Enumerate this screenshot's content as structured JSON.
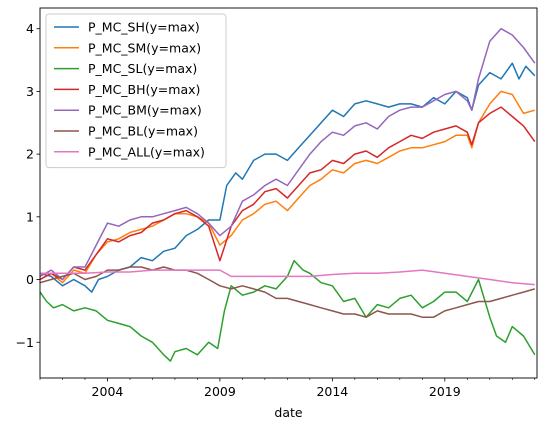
{
  "chart_data": {
    "type": "line",
    "title": "",
    "xlabel": "date",
    "ylabel": "",
    "xlim": [
      2001.0,
      2023.1
    ],
    "ylim": [
      -1.57,
      4.33
    ],
    "grid": false,
    "legend_position": "top-left",
    "x_major_ticks": [
      2004,
      2009,
      2014,
      2019
    ],
    "y_ticks": [
      -1,
      0,
      1,
      2,
      3,
      4
    ],
    "series": [
      {
        "name": "P_MC_SH(y=max)",
        "color": "#1f77b4",
        "x": [
          2001.0,
          2001.5,
          2002.0,
          2002.5,
          2003.0,
          2003.3,
          2003.6,
          2004.0,
          2004.5,
          2005.0,
          2005.5,
          2006.0,
          2006.5,
          2007.0,
          2007.5,
          2008.0,
          2008.5,
          2009.0,
          2009.3,
          2009.7,
          2010.0,
          2010.5,
          2011.0,
          2011.5,
          2012.0,
          2012.5,
          2013.0,
          2013.5,
          2014.0,
          2014.5,
          2015.0,
          2015.5,
          2016.0,
          2016.5,
          2017.0,
          2017.5,
          2018.0,
          2018.5,
          2019.0,
          2019.5,
          2020.0,
          2020.2,
          2020.5,
          2021.0,
          2021.5,
          2022.0,
          2022.3,
          2022.6,
          2023.0
        ],
        "values": [
          0.1,
          0.05,
          -0.1,
          0.0,
          -0.1,
          -0.2,
          0.0,
          0.05,
          0.15,
          0.2,
          0.35,
          0.3,
          0.45,
          0.5,
          0.7,
          0.8,
          0.95,
          0.95,
          1.5,
          1.7,
          1.6,
          1.9,
          2.0,
          2.0,
          1.9,
          2.1,
          2.3,
          2.5,
          2.7,
          2.6,
          2.8,
          2.85,
          2.8,
          2.75,
          2.8,
          2.8,
          2.75,
          2.9,
          2.8,
          3.0,
          2.9,
          2.7,
          3.1,
          3.3,
          3.2,
          3.45,
          3.2,
          3.4,
          3.25
        ]
      },
      {
        "name": "P_MC_SM(y=max)",
        "color": "#ff7f0e",
        "x": [
          2001.0,
          2001.5,
          2002.0,
          2002.5,
          2003.0,
          2003.5,
          2004.0,
          2004.5,
          2005.0,
          2005.5,
          2006.0,
          2006.5,
          2007.0,
          2007.5,
          2008.0,
          2008.5,
          2009.0,
          2009.5,
          2010.0,
          2010.5,
          2011.0,
          2011.5,
          2012.0,
          2012.5,
          2013.0,
          2013.5,
          2014.0,
          2014.5,
          2015.0,
          2015.5,
          2016.0,
          2016.5,
          2017.0,
          2017.5,
          2018.0,
          2018.5,
          2019.0,
          2019.5,
          2020.0,
          2020.2,
          2020.5,
          2021.0,
          2021.5,
          2022.0,
          2022.5,
          2023.0
        ],
        "values": [
          0.0,
          0.1,
          -0.05,
          0.15,
          0.1,
          0.4,
          0.6,
          0.65,
          0.75,
          0.8,
          0.85,
          0.95,
          1.05,
          1.05,
          1.0,
          0.9,
          0.55,
          0.7,
          0.95,
          1.05,
          1.2,
          1.25,
          1.1,
          1.3,
          1.5,
          1.6,
          1.75,
          1.7,
          1.85,
          1.9,
          1.85,
          1.95,
          2.05,
          2.1,
          2.1,
          2.15,
          2.2,
          2.3,
          2.3,
          2.1,
          2.5,
          2.8,
          3.0,
          2.95,
          2.65,
          2.7
        ]
      },
      {
        "name": "P_MC_SL(y=max)",
        "color": "#2ca02c",
        "x": [
          2001.0,
          2001.3,
          2001.6,
          2002.0,
          2002.5,
          2003.0,
          2003.5,
          2004.0,
          2004.5,
          2005.0,
          2005.5,
          2006.0,
          2006.5,
          2006.8,
          2007.0,
          2007.5,
          2008.0,
          2008.5,
          2008.9,
          2009.2,
          2009.5,
          2010.0,
          2010.5,
          2011.0,
          2011.5,
          2012.0,
          2012.3,
          2012.7,
          2013.0,
          2013.5,
          2014.0,
          2014.5,
          2015.0,
          2015.5,
          2016.0,
          2016.5,
          2017.0,
          2017.5,
          2018.0,
          2018.5,
          2019.0,
          2019.5,
          2020.0,
          2020.5,
          2021.0,
          2021.3,
          2021.7,
          2022.0,
          2022.5,
          2023.0
        ],
        "values": [
          -0.2,
          -0.35,
          -0.45,
          -0.4,
          -0.5,
          -0.45,
          -0.5,
          -0.65,
          -0.7,
          -0.75,
          -0.9,
          -1.0,
          -1.2,
          -1.3,
          -1.15,
          -1.1,
          -1.2,
          -1.0,
          -1.1,
          -0.5,
          -0.1,
          -0.25,
          -0.2,
          -0.1,
          -0.15,
          0.05,
          0.3,
          0.15,
          0.1,
          -0.05,
          -0.1,
          -0.35,
          -0.3,
          -0.6,
          -0.4,
          -0.45,
          -0.3,
          -0.25,
          -0.45,
          -0.35,
          -0.2,
          -0.2,
          -0.35,
          0.0,
          -0.6,
          -0.9,
          -1.0,
          -0.75,
          -0.9,
          -1.2
        ]
      },
      {
        "name": "P_MC_BH(y=max)",
        "color": "#d62728",
        "x": [
          2001.0,
          2001.5,
          2002.0,
          2002.5,
          2003.0,
          2003.5,
          2004.0,
          2004.5,
          2005.0,
          2005.5,
          2006.0,
          2006.5,
          2007.0,
          2007.5,
          2008.0,
          2008.5,
          2009.0,
          2009.5,
          2010.0,
          2010.5,
          2011.0,
          2011.5,
          2012.0,
          2012.5,
          2013.0,
          2013.5,
          2014.0,
          2014.5,
          2015.0,
          2015.5,
          2016.0,
          2016.5,
          2017.0,
          2017.5,
          2018.0,
          2018.5,
          2019.0,
          2019.5,
          2020.0,
          2020.2,
          2020.5,
          2021.0,
          2021.5,
          2022.0,
          2022.5,
          2023.0
        ],
        "values": [
          0.0,
          0.1,
          0.0,
          0.2,
          0.15,
          0.4,
          0.65,
          0.6,
          0.7,
          0.75,
          0.9,
          0.95,
          1.05,
          1.1,
          1.0,
          0.85,
          0.3,
          0.85,
          1.1,
          1.2,
          1.4,
          1.45,
          1.3,
          1.5,
          1.7,
          1.75,
          1.9,
          1.85,
          2.0,
          2.05,
          1.95,
          2.1,
          2.2,
          2.3,
          2.25,
          2.35,
          2.4,
          2.45,
          2.35,
          2.15,
          2.5,
          2.65,
          2.75,
          2.6,
          2.45,
          2.2
        ]
      },
      {
        "name": "P_MC_BM(y=max)",
        "color": "#9467bd",
        "x": [
          2001.0,
          2001.5,
          2002.0,
          2002.5,
          2003.0,
          2003.5,
          2004.0,
          2004.5,
          2005.0,
          2005.5,
          2006.0,
          2006.5,
          2007.0,
          2007.5,
          2008.0,
          2008.5,
          2009.0,
          2009.5,
          2010.0,
          2010.5,
          2011.0,
          2011.5,
          2012.0,
          2012.5,
          2013.0,
          2013.5,
          2014.0,
          2014.5,
          2015.0,
          2015.5,
          2016.0,
          2016.5,
          2017.0,
          2017.5,
          2018.0,
          2018.5,
          2019.0,
          2019.5,
          2020.0,
          2020.2,
          2020.5,
          2021.0,
          2021.5,
          2022.0,
          2022.5,
          2023.0
        ],
        "values": [
          0.05,
          0.15,
          0.0,
          0.2,
          0.2,
          0.55,
          0.9,
          0.85,
          0.95,
          1.0,
          1.0,
          1.05,
          1.1,
          1.15,
          1.05,
          0.9,
          0.7,
          0.85,
          1.25,
          1.35,
          1.5,
          1.6,
          1.5,
          1.75,
          2.0,
          2.2,
          2.35,
          2.3,
          2.45,
          2.5,
          2.4,
          2.6,
          2.7,
          2.75,
          2.75,
          2.85,
          2.95,
          3.0,
          2.85,
          2.7,
          3.2,
          3.8,
          4.0,
          3.9,
          3.7,
          3.45
        ]
      },
      {
        "name": "P_MC_BL(y=max)",
        "color": "#8c564b",
        "x": [
          2001.0,
          2001.5,
          2002.0,
          2002.5,
          2003.0,
          2003.5,
          2004.0,
          2004.5,
          2005.0,
          2005.5,
          2006.0,
          2006.5,
          2007.0,
          2007.5,
          2008.0,
          2008.5,
          2009.0,
          2009.5,
          2010.0,
          2010.5,
          2011.0,
          2011.5,
          2012.0,
          2012.5,
          2013.0,
          2013.5,
          2014.0,
          2014.5,
          2015.0,
          2015.5,
          2016.0,
          2016.5,
          2017.0,
          2017.5,
          2018.0,
          2018.5,
          2019.0,
          2019.5,
          2020.0,
          2020.5,
          2021.0,
          2021.5,
          2022.0,
          2022.5,
          2023.0
        ],
        "values": [
          -0.05,
          0.0,
          0.05,
          0.1,
          0.0,
          0.05,
          0.15,
          0.15,
          0.2,
          0.2,
          0.15,
          0.2,
          0.15,
          0.15,
          0.1,
          0.0,
          -0.1,
          -0.15,
          -0.1,
          -0.15,
          -0.2,
          -0.3,
          -0.3,
          -0.35,
          -0.4,
          -0.45,
          -0.5,
          -0.55,
          -0.55,
          -0.6,
          -0.5,
          -0.55,
          -0.55,
          -0.55,
          -0.6,
          -0.6,
          -0.5,
          -0.45,
          -0.4,
          -0.35,
          -0.35,
          -0.3,
          -0.25,
          -0.2,
          -0.15
        ]
      },
      {
        "name": "P_MC_ALL(y=max)",
        "color": "#e377c2",
        "x": [
          2001.0,
          2002.0,
          2003.0,
          2004.0,
          2005.0,
          2006.0,
          2007.0,
          2008.0,
          2009.0,
          2009.5,
          2010.0,
          2011.0,
          2012.0,
          2013.0,
          2014.0,
          2015.0,
          2016.0,
          2017.0,
          2018.0,
          2019.0,
          2020.0,
          2021.0,
          2022.0,
          2023.0
        ],
        "values": [
          0.1,
          0.1,
          0.1,
          0.12,
          0.12,
          0.15,
          0.15,
          0.15,
          0.15,
          0.05,
          0.05,
          0.05,
          0.05,
          0.05,
          0.08,
          0.1,
          0.1,
          0.12,
          0.15,
          0.1,
          0.05,
          0.0,
          -0.05,
          -0.08
        ]
      }
    ]
  }
}
